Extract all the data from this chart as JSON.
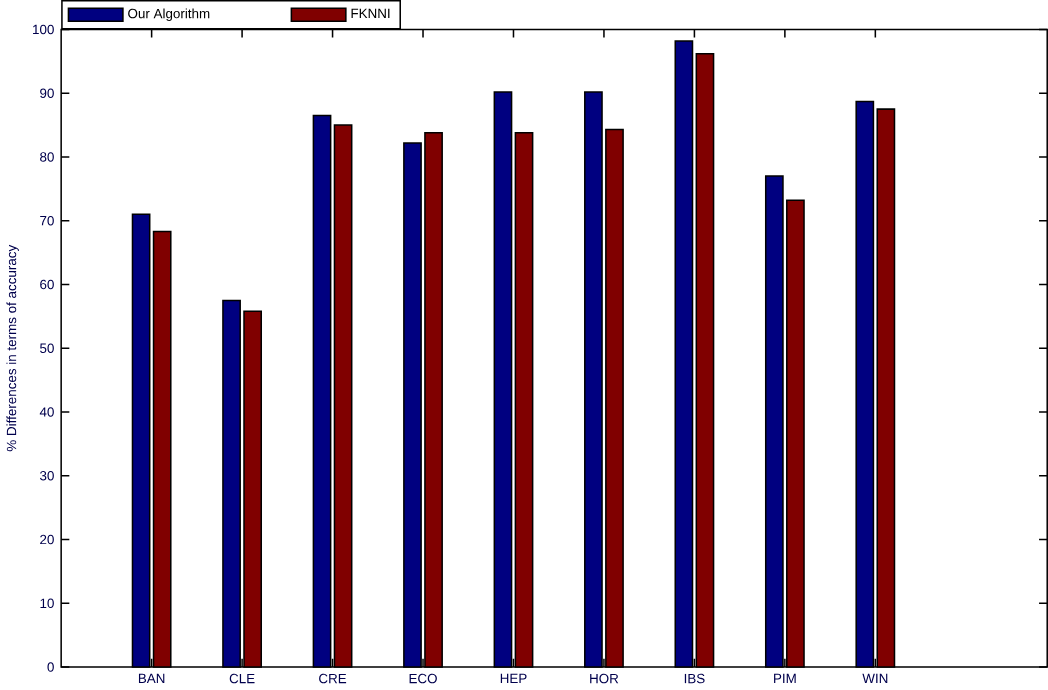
{
  "chart_data": {
    "type": "bar",
    "ylabel": "% Differences in terms of accuracy",
    "categories": [
      "BAN",
      "CLE",
      "CRE",
      "ECO",
      "HEP",
      "HOR",
      "IBS",
      "PIM",
      "WIN"
    ],
    "series": [
      {
        "name": "Our Algorithm",
        "color": "#000080",
        "values": [
          71,
          57.5,
          86.5,
          82.2,
          90.2,
          90.2,
          98.2,
          77,
          88.7
        ]
      },
      {
        "name": "FKNNI",
        "color": "#800000",
        "values": [
          68.3,
          55.8,
          85,
          83.8,
          83.8,
          84.3,
          96.2,
          73.2,
          87.5
        ]
      }
    ],
    "ylim": [
      0,
      100
    ],
    "yticks": [
      0,
      10,
      20,
      30,
      40,
      50,
      60,
      70,
      80,
      90,
      100
    ],
    "grid": false,
    "legend": "top left"
  }
}
